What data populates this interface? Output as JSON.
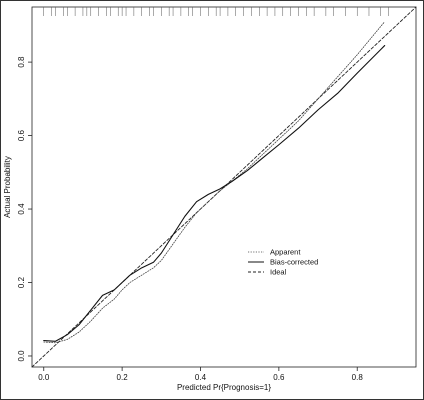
{
  "chart_data": {
    "type": "line",
    "title": "",
    "xlabel": "Predicted Pr{Prognosis=1}",
    "ylabel": "Actual Probability",
    "xlim": [
      -0.03,
      0.95
    ],
    "ylim": [
      -0.03,
      0.95
    ],
    "x_ticks": [
      "0.0",
      "0.2",
      "0.4",
      "0.6",
      "0.8"
    ],
    "y_ticks": [
      "0.0",
      "0.2",
      "0.4",
      "0.6",
      "0.8"
    ],
    "grid": false,
    "legend_position": "center-right",
    "series": [
      {
        "name": "Apparent",
        "style": "dotted",
        "color": "#444444",
        "x": [
          0.0,
          0.03,
          0.06,
          0.09,
          0.12,
          0.15,
          0.18,
          0.2,
          0.22,
          0.25,
          0.28,
          0.3,
          0.33,
          0.36,
          0.39,
          0.42,
          0.45,
          0.48,
          0.52,
          0.56,
          0.6,
          0.65,
          0.7,
          0.75,
          0.8,
          0.87
        ],
        "y": [
          0.038,
          0.036,
          0.045,
          0.065,
          0.095,
          0.13,
          0.155,
          0.18,
          0.2,
          0.22,
          0.24,
          0.26,
          0.305,
          0.35,
          0.39,
          0.42,
          0.45,
          0.475,
          0.51,
          0.55,
          0.59,
          0.64,
          0.7,
          0.76,
          0.82,
          0.91
        ]
      },
      {
        "name": "Bias-corrected",
        "style": "solid",
        "color": "#111111",
        "x": [
          0.0,
          0.03,
          0.06,
          0.09,
          0.12,
          0.15,
          0.18,
          0.2,
          0.22,
          0.25,
          0.28,
          0.3,
          0.33,
          0.36,
          0.39,
          0.42,
          0.45,
          0.48,
          0.52,
          0.56,
          0.6,
          0.65,
          0.7,
          0.75,
          0.8,
          0.87
        ],
        "y": [
          0.042,
          0.04,
          0.058,
          0.085,
          0.125,
          0.165,
          0.18,
          0.2,
          0.22,
          0.24,
          0.255,
          0.28,
          0.33,
          0.38,
          0.42,
          0.44,
          0.455,
          0.475,
          0.505,
          0.54,
          0.575,
          0.62,
          0.67,
          0.715,
          0.77,
          0.845
        ]
      },
      {
        "name": "Ideal",
        "style": "dashed",
        "color": "#222222",
        "x": [
          -0.03,
          0.95
        ],
        "y": [
          -0.03,
          0.95
        ]
      }
    ],
    "rug_x": [
      0.0,
      0.02,
      0.03,
      0.05,
      0.06,
      0.08,
      0.1,
      0.11,
      0.12,
      0.14,
      0.16,
      0.17,
      0.19,
      0.2,
      0.21,
      0.23,
      0.25,
      0.27,
      0.28,
      0.3,
      0.32,
      0.33,
      0.35,
      0.37,
      0.38,
      0.4,
      0.42,
      0.44,
      0.45,
      0.47,
      0.49,
      0.51,
      0.53,
      0.55,
      0.57,
      0.59,
      0.61,
      0.63,
      0.65,
      0.67,
      0.69,
      0.72,
      0.74,
      0.77,
      0.8,
      0.83,
      0.86,
      0.88
    ]
  }
}
